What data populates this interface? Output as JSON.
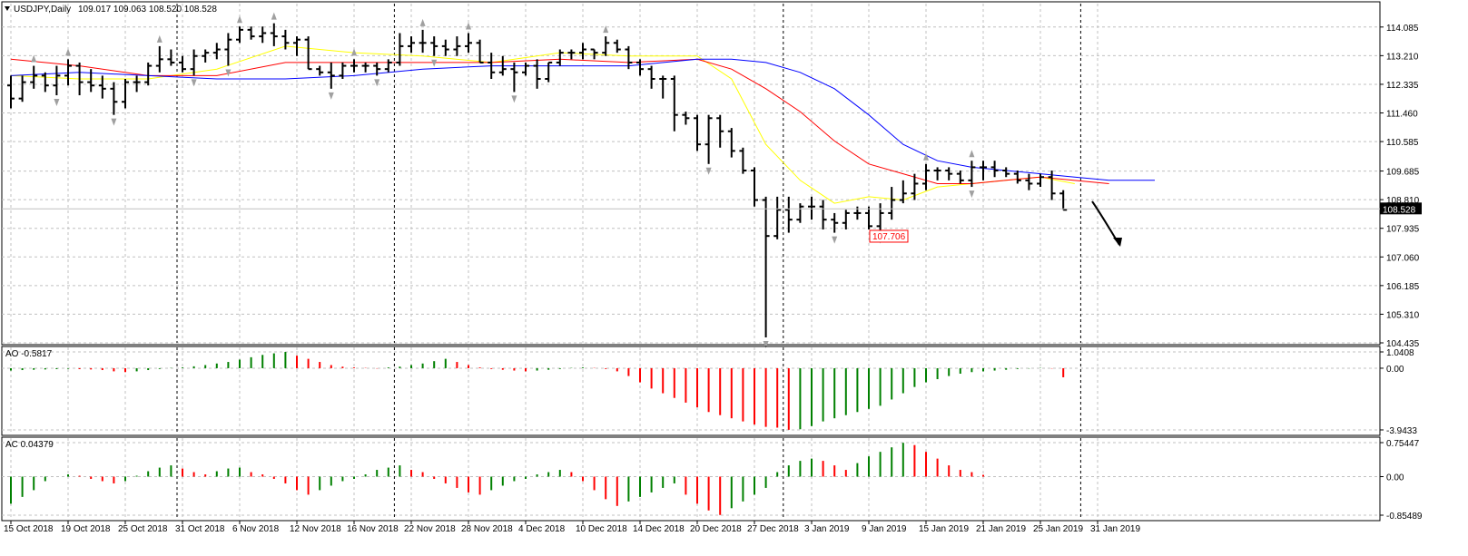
{
  "header": {
    "symbol": "USDJPY,Daily",
    "ohlc": "109.017 109.063 108.520 108.528"
  },
  "colors": {
    "background": "#ffffff",
    "grid": "#c0c0c0",
    "session_line": "#000000",
    "bars": "#000000",
    "ma_fast": "#ffff00",
    "ma_mid": "#ff0000",
    "ma_slow": "#0000ff",
    "ao_up": "#008000",
    "ao_down": "#ff0000",
    "price_label_bg": "#000000",
    "low_label": "#ff0000",
    "fractal": "#a0a0a0"
  },
  "chart_data": [
    {
      "type": "ohlc",
      "panel": "main",
      "title": "USDJPY,Daily",
      "ylim": [
        104.435,
        114.8
      ],
      "y_ticks": [
        "114.085",
        "113.210",
        "112.335",
        "111.460",
        "110.585",
        "109.685",
        "108.810",
        "107.935",
        "107.060",
        "106.185",
        "105.310",
        "104.435"
      ],
      "current_price": "108.528",
      "low_marker": "107.706",
      "x_labels": [
        "15 Oct 2018",
        "19 Oct 2018",
        "25 Oct 2018",
        "31 Oct 2018",
        "6 Nov 2018",
        "12 Nov 2018",
        "16 Nov 2018",
        "22 Nov 2018",
        "28 Nov 2018",
        "4 Dec 2018",
        "10 Dec 2018",
        "14 Dec 2018",
        "20 Dec 2018",
        "27 Dec 2018",
        "3 Jan 2019",
        "9 Jan 2019",
        "15 Jan 2019",
        "21 Jan 2019",
        "25 Jan 2019",
        "31 Jan 2019"
      ],
      "series": [
        {
          "values": [
            [
              112.3,
              112.6,
              111.6,
              111.9
            ],
            [
              111.9,
              112.6,
              111.8,
              112.4
            ],
            [
              112.4,
              112.9,
              112.2,
              112.6
            ],
            [
              112.6,
              112.7,
              112.1,
              112.3
            ],
            [
              112.3,
              112.9,
              112.0,
              112.6
            ],
            [
              112.6,
              113.1,
              112.3,
              112.9
            ],
            [
              112.9,
              113.0,
              112.0,
              112.4
            ],
            [
              112.4,
              112.8,
              112.1,
              112.3
            ],
            [
              112.3,
              112.6,
              111.9,
              112.2
            ],
            [
              112.2,
              112.4,
              111.4,
              111.8
            ],
            [
              111.8,
              112.5,
              111.6,
              112.4
            ],
            [
              112.4,
              112.6,
              112.1,
              112.4
            ],
            [
              112.4,
              113.0,
              112.3,
              112.9
            ],
            [
              112.9,
              113.5,
              112.7,
              113.1
            ],
            [
              113.1,
              113.4,
              112.9,
              113.0
            ],
            [
              113.0,
              113.2,
              112.7,
              112.8
            ],
            [
              112.8,
              113.4,
              112.6,
              113.2
            ],
            [
              113.2,
              113.4,
              113.0,
              113.3
            ],
            [
              113.3,
              113.6,
              113.1,
              113.4
            ],
            [
              113.4,
              113.9,
              112.9,
              113.7
            ],
            [
              113.7,
              114.1,
              113.6,
              114.0
            ],
            [
              114.0,
              114.1,
              113.7,
              113.8
            ],
            [
              113.8,
              114.1,
              113.6,
              113.9
            ],
            [
              113.9,
              114.2,
              113.5,
              113.8
            ],
            [
              113.8,
              114.0,
              113.4,
              113.6
            ],
            [
              113.6,
              113.8,
              113.2,
              113.7
            ],
            [
              113.7,
              113.8,
              112.8,
              112.8
            ],
            [
              112.8,
              112.9,
              112.6,
              112.7
            ],
            [
              112.7,
              113.0,
              112.2,
              112.6
            ],
            [
              112.6,
              113.0,
              112.5,
              112.9
            ],
            [
              112.9,
              113.1,
              112.7,
              112.9
            ],
            [
              112.9,
              113.0,
              112.7,
              112.9
            ],
            [
              112.9,
              113.0,
              112.6,
              112.8
            ],
            [
              112.8,
              113.1,
              112.7,
              113.0
            ],
            [
              113.0,
              113.9,
              112.9,
              113.5
            ],
            [
              113.5,
              113.8,
              113.3,
              113.6
            ],
            [
              113.6,
              114.0,
              113.3,
              113.6
            ],
            [
              113.6,
              113.8,
              113.2,
              113.5
            ],
            [
              113.5,
              113.7,
              113.2,
              113.4
            ],
            [
              113.4,
              113.8,
              113.2,
              113.5
            ],
            [
              113.5,
              113.9,
              113.3,
              113.6
            ],
            [
              113.6,
              113.7,
              113.0,
              113.0
            ],
            [
              113.0,
              113.3,
              112.5,
              112.7
            ],
            [
              112.7,
              113.2,
              112.6,
              112.8
            ],
            [
              112.8,
              113.0,
              112.1,
              112.7
            ],
            [
              112.7,
              113.0,
              112.6,
              112.9
            ],
            [
              112.9,
              113.1,
              112.2,
              112.5
            ],
            [
              112.5,
              113.0,
              112.4,
              113.0
            ],
            [
              113.0,
              113.4,
              112.9,
              113.3
            ],
            [
              113.3,
              113.4,
              113.1,
              113.3
            ],
            [
              113.3,
              113.6,
              113.1,
              113.4
            ],
            [
              113.4,
              113.4,
              113.1,
              113.3
            ],
            [
              113.3,
              113.8,
              113.2,
              113.6
            ],
            [
              113.6,
              113.7,
              113.3,
              113.4
            ],
            [
              113.4,
              113.5,
              112.8,
              113.0
            ],
            [
              113.0,
              113.1,
              112.6,
              112.8
            ],
            [
              112.8,
              112.9,
              112.2,
              112.5
            ],
            [
              112.5,
              112.6,
              111.9,
              112.5
            ],
            [
              112.5,
              112.6,
              110.9,
              111.4
            ],
            [
              111.4,
              111.5,
              111.1,
              111.3
            ],
            [
              111.3,
              111.4,
              110.3,
              110.5
            ],
            [
              110.5,
              111.4,
              109.9,
              111.3
            ],
            [
              111.3,
              111.4,
              110.4,
              110.9
            ],
            [
              110.9,
              111.0,
              110.1,
              110.3
            ],
            [
              110.3,
              110.4,
              109.6,
              109.7
            ],
            [
              109.7,
              109.8,
              108.6,
              108.8
            ],
            [
              108.8,
              108.9,
              104.6,
              107.7
            ],
            [
              107.7,
              108.9,
              107.6,
              108.5
            ],
            [
              108.5,
              108.9,
              107.8,
              108.2
            ],
            [
              108.2,
              108.7,
              108.1,
              108.6
            ],
            [
              108.6,
              108.9,
              108.2,
              108.6
            ],
            [
              108.6,
              108.8,
              107.9,
              108.2
            ],
            [
              108.2,
              108.4,
              107.8,
              108.1
            ],
            [
              108.1,
              108.5,
              107.9,
              108.4
            ],
            [
              108.4,
              108.6,
              108.2,
              108.4
            ],
            [
              108.4,
              108.6,
              107.9,
              108.0
            ],
            [
              108.0,
              108.7,
              107.8,
              108.4
            ],
            [
              108.4,
              109.2,
              108.2,
              108.8
            ],
            [
              108.8,
              109.4,
              108.7,
              109.0
            ],
            [
              109.0,
              109.6,
              108.8,
              109.3
            ],
            [
              109.3,
              109.9,
              109.1,
              109.7
            ],
            [
              109.7,
              109.8,
              109.4,
              109.7
            ],
            [
              109.7,
              109.8,
              109.4,
              109.6
            ],
            [
              109.6,
              109.7,
              109.3,
              109.4
            ],
            [
              109.4,
              110.0,
              109.2,
              109.8
            ],
            [
              109.8,
              110.0,
              109.4,
              109.8
            ],
            [
              109.8,
              110.0,
              109.5,
              109.7
            ],
            [
              109.7,
              109.8,
              109.5,
              109.6
            ],
            [
              109.6,
              109.7,
              109.3,
              109.4
            ],
            [
              109.4,
              109.6,
              109.1,
              109.3
            ],
            [
              109.3,
              109.6,
              109.2,
              109.5
            ],
            [
              109.5,
              109.7,
              108.8,
              109.0
            ],
            [
              109.0,
              109.1,
              108.5,
              108.5
            ]
          ]
        },
        {
          "name": "",
          "kind": "line",
          "color": "ma_fast",
          "x": [
            0,
            6,
            12,
            18,
            24,
            30,
            36,
            42,
            48,
            54,
            60,
            63,
            66,
            69,
            72,
            75,
            78,
            81,
            84,
            87,
            90,
            93
          ],
          "values": [
            112.6,
            112.5,
            112.5,
            112.8,
            113.5,
            113.3,
            113.2,
            113.0,
            113.3,
            113.2,
            113.2,
            112.5,
            110.5,
            109.4,
            108.7,
            108.9,
            108.8,
            109.2,
            109.3,
            109.4,
            109.5,
            109.3
          ]
        },
        {
          "name": "",
          "kind": "line",
          "color": "ma_mid",
          "x": [
            0,
            6,
            12,
            18,
            24,
            30,
            36,
            42,
            48,
            54,
            60,
            63,
            66,
            69,
            72,
            75,
            78,
            81,
            84,
            87,
            90,
            96
          ],
          "values": [
            113.1,
            112.9,
            112.6,
            112.6,
            113.0,
            113.0,
            113.0,
            113.0,
            113.1,
            113.0,
            113.1,
            112.8,
            112.2,
            111.5,
            110.6,
            109.9,
            109.6,
            109.3,
            109.3,
            109.4,
            109.5,
            109.3
          ]
        },
        {
          "name": "",
          "kind": "line",
          "color": "ma_slow",
          "x": [
            0,
            6,
            12,
            18,
            24,
            30,
            36,
            42,
            48,
            54,
            60,
            63,
            66,
            69,
            72,
            75,
            78,
            81,
            84,
            87,
            90,
            93,
            96,
            100
          ],
          "values": [
            112.6,
            112.7,
            112.6,
            112.5,
            112.5,
            112.6,
            112.8,
            112.9,
            112.9,
            112.9,
            113.1,
            113.1,
            113.0,
            112.7,
            112.2,
            111.4,
            110.5,
            110.0,
            109.8,
            109.7,
            109.6,
            109.5,
            109.4,
            109.4
          ]
        }
      ]
    },
    {
      "type": "bar",
      "panel": "ao",
      "title": "AO -0.5817",
      "ylim": [
        -3.9443,
        1.0408
      ],
      "y_ticks": [
        "1.0408",
        "0.00",
        "-3.9433"
      ],
      "values": [
        -0.15,
        -0.12,
        -0.1,
        -0.08,
        -0.06,
        -0.04,
        -0.06,
        -0.08,
        -0.12,
        -0.2,
        -0.25,
        -0.2,
        -0.12,
        -0.05,
        0.02,
        0.05,
        0.12,
        0.2,
        0.3,
        0.4,
        0.55,
        0.7,
        0.85,
        0.95,
        1.04,
        0.8,
        0.6,
        0.4,
        0.2,
        0.1,
        0.05,
        0.02,
        -0.02,
        0.05,
        0.1,
        0.2,
        0.3,
        0.45,
        0.6,
        0.4,
        0.2,
        0.05,
        -0.05,
        -0.1,
        -0.15,
        -0.2,
        -0.15,
        -0.1,
        -0.05,
        0.02,
        0.05,
        0.02,
        -0.05,
        -0.2,
        -0.5,
        -0.9,
        -1.3,
        -1.6,
        -1.9,
        -2.2,
        -2.5,
        -2.8,
        -3.0,
        -3.2,
        -3.4,
        -3.6,
        -3.75,
        -3.8,
        -3.94,
        -3.9,
        -3.7,
        -3.4,
        -3.2,
        -3.0,
        -2.8,
        -2.6,
        -2.4,
        -2.0,
        -1.6,
        -1.2,
        -0.9,
        -0.7,
        -0.5,
        -0.35,
        -0.25,
        -0.2,
        -0.15,
        -0.1,
        -0.05,
        -0.02,
        0.02,
        -0.02,
        -0.58
      ]
    },
    {
      "type": "bar",
      "panel": "ac",
      "title": "AC 0.04379",
      "ylim": [
        -0.85489,
        0.75447
      ],
      "y_ticks": [
        "0.75447",
        "0.00",
        "-0.85489"
      ],
      "values": [
        -0.6,
        -0.45,
        -0.3,
        -0.1,
        0.0,
        0.05,
        0.02,
        -0.05,
        -0.1,
        -0.15,
        -0.1,
        0.02,
        0.12,
        0.2,
        0.25,
        0.18,
        0.1,
        0.05,
        0.12,
        0.18,
        0.2,
        0.1,
        0.05,
        -0.05,
        -0.15,
        -0.3,
        -0.4,
        -0.3,
        -0.2,
        -0.1,
        -0.05,
        0.05,
        0.15,
        0.2,
        0.25,
        0.15,
        0.1,
        -0.05,
        -0.15,
        -0.25,
        -0.35,
        -0.4,
        -0.3,
        -0.2,
        -0.1,
        -0.05,
        0.05,
        0.1,
        0.15,
        0.1,
        -0.1,
        -0.3,
        -0.5,
        -0.65,
        -0.55,
        -0.45,
        -0.35,
        -0.25,
        -0.15,
        -0.4,
        -0.6,
        -0.75,
        -0.85,
        -0.7,
        -0.55,
        -0.4,
        -0.25,
        0.1,
        0.25,
        0.35,
        0.4,
        0.35,
        0.25,
        0.15,
        0.3,
        0.45,
        0.55,
        0.65,
        0.75,
        0.7,
        0.55,
        0.4,
        0.25,
        0.15,
        0.1,
        0.04
      ]
    }
  ]
}
